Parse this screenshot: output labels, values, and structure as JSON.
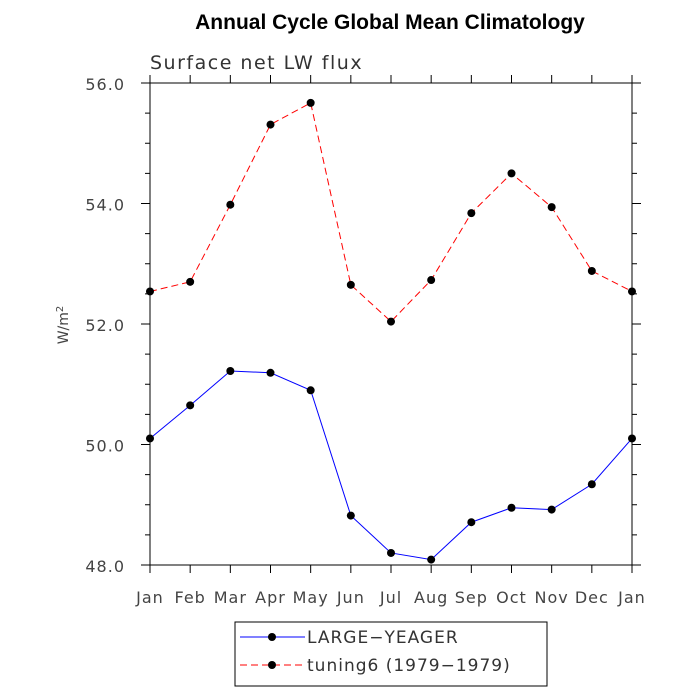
{
  "chart_data": {
    "type": "line",
    "title": "Annual Cycle Global Mean Climatology",
    "subtitle": "Surface net LW flux",
    "ylabel": "W/m",
    "ylabel_superscript": "2",
    "categories": [
      "Jan",
      "Feb",
      "Mar",
      "Apr",
      "May",
      "Jun",
      "Jul",
      "Aug",
      "Sep",
      "Oct",
      "Nov",
      "Dec",
      "Jan"
    ],
    "ylim": [
      48.0,
      56.0
    ],
    "yticks": [
      "48.0",
      "50.0",
      "52.0",
      "54.0",
      "56.0"
    ],
    "grid": false,
    "legend_position": "bottom",
    "series": [
      {
        "name": "LARGE−YEAGER",
        "color": "#0000ff",
        "dash": "solid",
        "values": [
          50.1,
          50.65,
          51.22,
          51.19,
          50.9,
          48.82,
          48.2,
          48.09,
          48.71,
          48.95,
          48.92,
          49.34,
          50.1
        ]
      },
      {
        "name": "tuning6 (1979−1979)",
        "color": "#ff0000",
        "dash": "dashed",
        "values": [
          52.54,
          52.7,
          53.98,
          55.31,
          55.67,
          52.65,
          52.04,
          52.73,
          53.84,
          54.5,
          53.94,
          52.88,
          52.54
        ]
      }
    ]
  }
}
